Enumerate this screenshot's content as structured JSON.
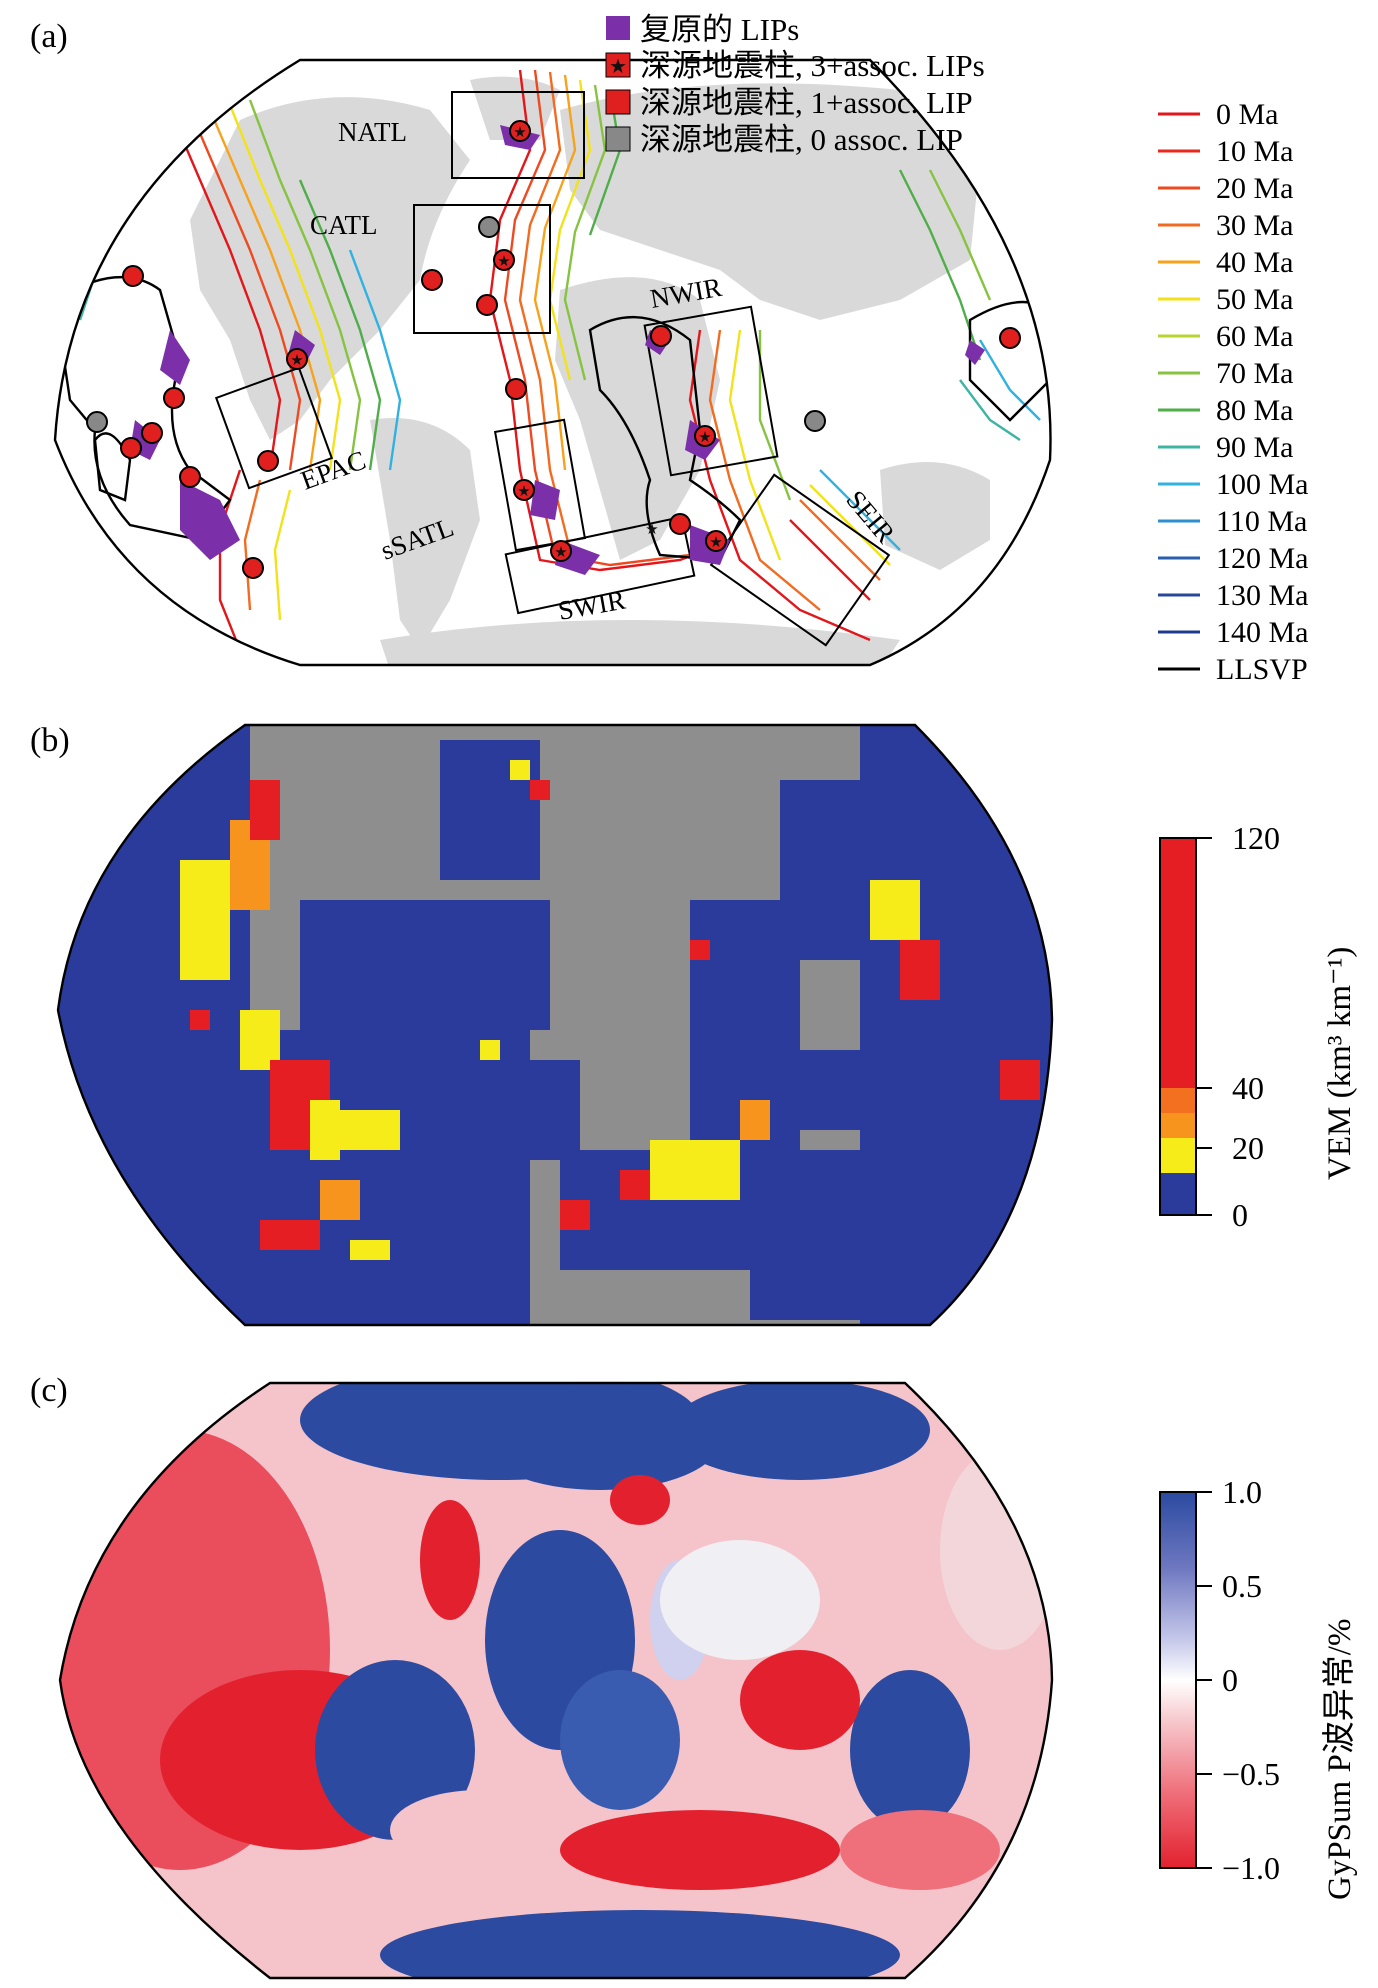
{
  "panels": {
    "a": {
      "label": "(a)",
      "legend": [
        {
          "text": "复原的 LIPs",
          "symbol": "purple-square",
          "color": "#7b2fa8"
        },
        {
          "text": "深源地震柱, 3+assoc. LIPs",
          "symbol": "red-square-star",
          "color": "#e0201f"
        },
        {
          "text": "深源地震柱, 1+assoc. LIP",
          "symbol": "red-square",
          "color": "#e0201f"
        },
        {
          "text": "深源地震柱, 0 assoc. LIP",
          "symbol": "gray-square",
          "color": "#888888"
        }
      ],
      "age_legend": [
        {
          "text": "0 Ma",
          "color": "#e3161a"
        },
        {
          "text": "10 Ma",
          "color": "#e8271e"
        },
        {
          "text": "20 Ma",
          "color": "#ee4a22"
        },
        {
          "text": "30 Ma",
          "color": "#f26b21"
        },
        {
          "text": "40 Ma",
          "color": "#f7a21c"
        },
        {
          "text": "50 Ma",
          "color": "#f2e21a"
        },
        {
          "text": "60 Ma",
          "color": "#b8d432"
        },
        {
          "text": "70 Ma",
          "color": "#86c341"
        },
        {
          "text": "80 Ma",
          "color": "#4fae49"
        },
        {
          "text": "90 Ma",
          "color": "#3eb4a2"
        },
        {
          "text": "100 Ma",
          "color": "#30b2e0"
        },
        {
          "text": "110 Ma",
          "color": "#2d8ed0"
        },
        {
          "text": "120 Ma",
          "color": "#2a5fae"
        },
        {
          "text": "130 Ma",
          "color": "#27479a"
        },
        {
          "text": "140 Ma",
          "color": "#1f3a8c"
        },
        {
          "text": "LLSVP",
          "color": "#000000"
        }
      ],
      "regions": [
        "NATL",
        "CATL",
        "NWIR",
        "EPAC",
        "sSATL",
        "SWIR",
        "SEIR"
      ]
    },
    "b": {
      "label": "(b)",
      "colorbar": {
        "title": "VEM (km³ km⁻¹)",
        "ticks": [
          "120",
          "40",
          "20",
          "0"
        ],
        "colors": [
          "#e41e23",
          "#f37021",
          "#f7941d",
          "#f5ec1a",
          "#2b3b9c"
        ]
      }
    },
    "c": {
      "label": "(c)",
      "colorbar": {
        "title": "GyPSum P波异常/%",
        "ticks": [
          "1.0",
          "0.5",
          "0",
          "−0.5",
          "−1.0"
        ]
      }
    }
  }
}
